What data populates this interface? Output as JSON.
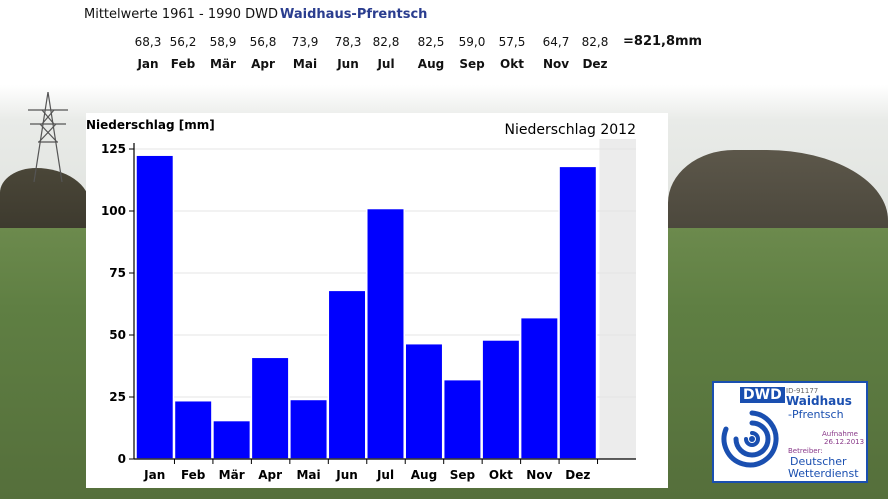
{
  "header": {
    "title": "Mittelwerte 1961 - 1990 DWD",
    "station": "Waidhaus-Pfrentsch",
    "normals": [
      "68,3",
      "56,2",
      "58,9",
      "56,8",
      "73,9",
      "78,3",
      "82,8",
      "82,5",
      "59,0",
      "57,5",
      "64,7",
      "82,8"
    ],
    "months": [
      "Jan",
      "Feb",
      "Mär",
      "Apr",
      "Mai",
      "Jun",
      "Jul",
      "Aug",
      "Sep",
      "Okt",
      "Nov",
      "Dez"
    ],
    "total": "=821,8mm"
  },
  "chart_data": {
    "type": "bar",
    "title": "Niederschlag 2012",
    "ylabel": "Niederschlag [mm]",
    "xlabel": "",
    "categories": [
      "Jan",
      "Feb",
      "Mär",
      "Apr",
      "Mai",
      "Jun",
      "Jul",
      "Aug",
      "Sep",
      "Okt",
      "Nov",
      "Dez"
    ],
    "values": [
      122.5,
      23.5,
      15.5,
      41,
      24,
      68,
      101,
      46.5,
      32,
      48,
      57,
      118
    ],
    "ylim": [
      0,
      125
    ],
    "yticks": [
      0,
      25,
      50,
      75,
      100,
      125
    ],
    "grid": true,
    "bar_color": "#0000ff",
    "note_gray_region": "Dez"
  },
  "logo": {
    "brand": "DWD",
    "id": "ID-91177",
    "name_line1": "Waidhaus",
    "name_line2": "-Pfrentsch",
    "aufnahme": "Aufnahme",
    "date": "26.12.2013",
    "betreiber": "Betreiber:",
    "org_line1": "Deutscher",
    "org_line2": "Wetterdienst",
    "color": "#1a4fb0"
  }
}
